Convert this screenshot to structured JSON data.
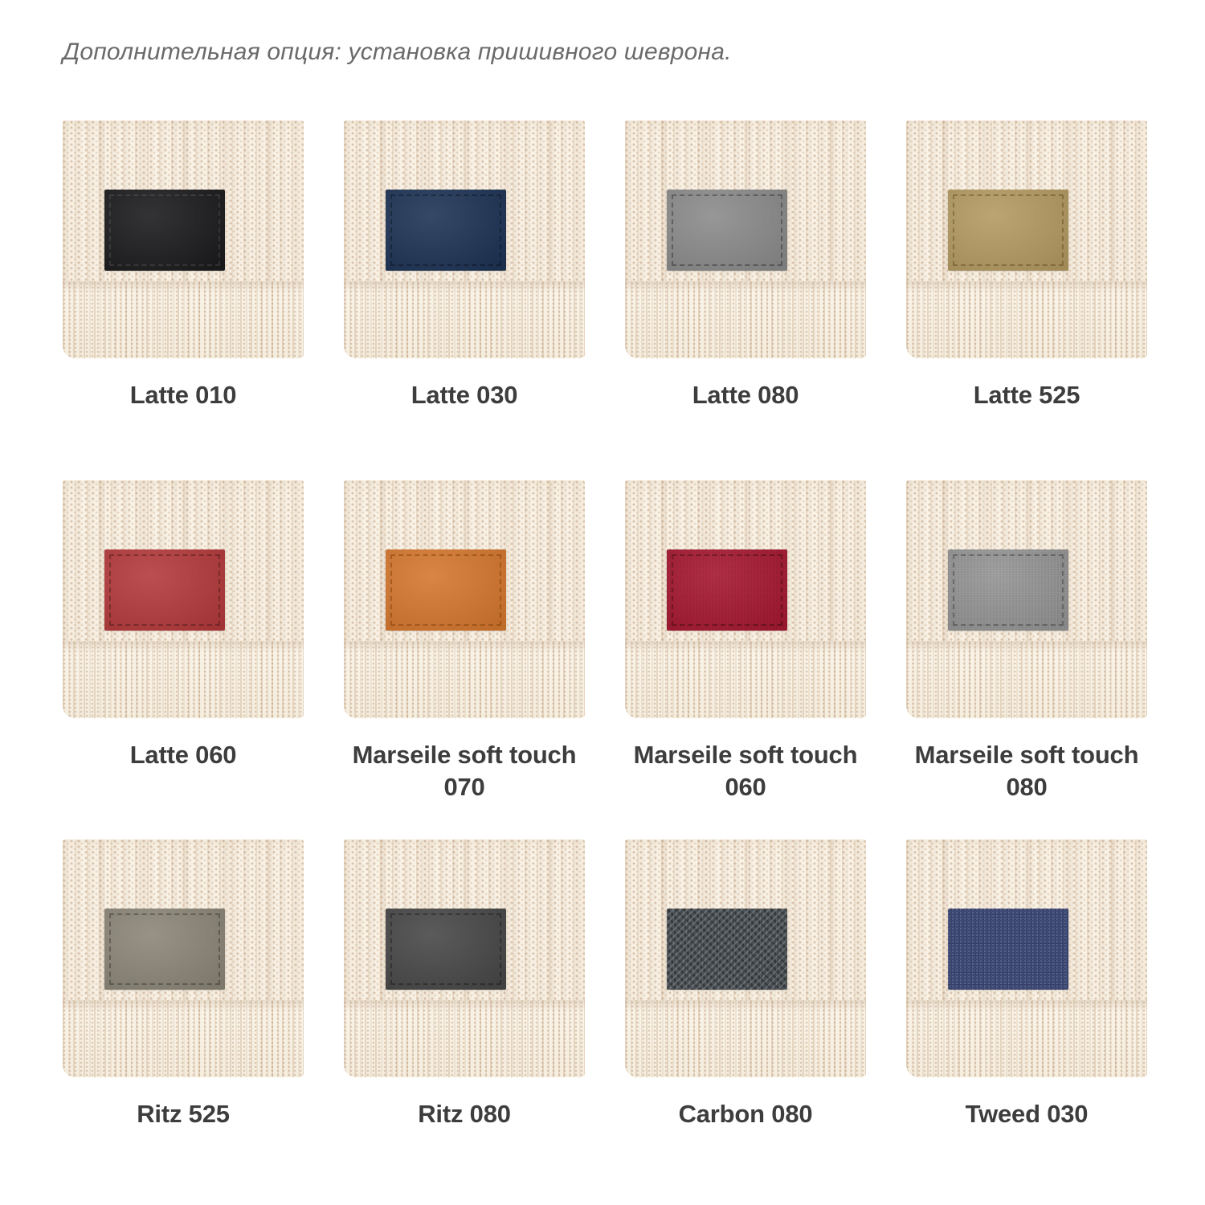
{
  "header": {
    "text": "Дополнительная опция: установка пришивного шеврона."
  },
  "colors": {
    "page_background": "#ffffff",
    "header_text": "#6a6a6a",
    "label_text": "#3d3d3d",
    "knit_base": "#f8f1e5"
  },
  "swatches": [
    {
      "label": "Latte 010",
      "patch_color": "#1c1c1e",
      "stitch_color": "rgba(255,255,255,0.10)",
      "texture": "suede"
    },
    {
      "label": "Latte 030",
      "patch_color": "#1e3456",
      "stitch_color": "rgba(0,0,0,0.30)",
      "texture": "suede"
    },
    {
      "label": "Latte 080",
      "patch_color": "#8b8b8b",
      "stitch_color": "rgba(0,0,0,0.30)",
      "texture": "suede"
    },
    {
      "label": "Latte 525",
      "patch_color": "#b39a62",
      "stitch_color": "rgba(92,70,28,0.45)",
      "texture": "suede"
    },
    {
      "label": "Latte 060",
      "patch_color": "#b43a3c",
      "stitch_color": "rgba(0,0,0,0.28)",
      "texture": "suede"
    },
    {
      "label": "Marseile soft touch 070",
      "patch_color": "#d5772f",
      "stitch_color": "rgba(110,50,0,0.40)",
      "texture": "suede"
    },
    {
      "label": "Marseile soft touch 060",
      "patch_color": "#a81a33",
      "stitch_color": "rgba(0,0,0,0.30)",
      "texture": "leather"
    },
    {
      "label": "Marseile soft touch 080",
      "patch_color": "#979797",
      "stitch_color": "rgba(0,0,0,0.28)",
      "texture": "leather"
    },
    {
      "label": "Ritz 525",
      "patch_color": "#8b8678",
      "stitch_color": "rgba(0,0,0,0.28)",
      "texture": "suede"
    },
    {
      "label": "Ritz 080",
      "patch_color": "#484848",
      "stitch_color": "rgba(0,0,0,0.30)",
      "texture": "suede"
    },
    {
      "label": "Carbon 080",
      "patch_color": "#474d52",
      "stitch_color": "transparent",
      "texture": "carbon"
    },
    {
      "label": "Tweed 030",
      "patch_color": "#3a4572",
      "stitch_color": "transparent",
      "texture": "tweed"
    }
  ]
}
